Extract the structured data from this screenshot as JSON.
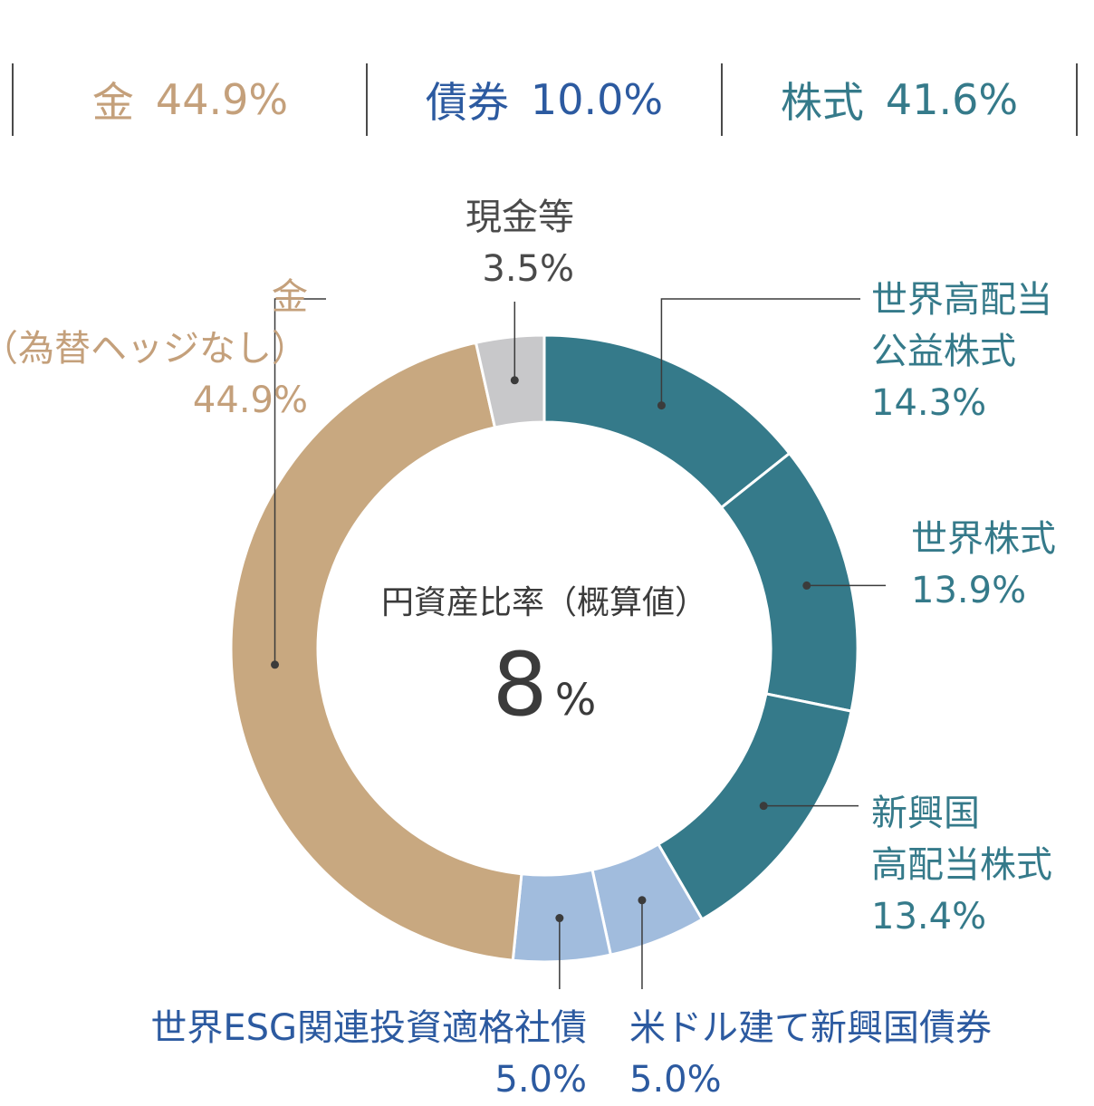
{
  "summary": [
    {
      "label": "金",
      "value": "44.9%",
      "color": "#c4a07b"
    },
    {
      "label": "債券",
      "value": "10.0%",
      "color": "#2c5aa0"
    },
    {
      "label": "株式",
      "value": "41.6%",
      "color": "#357a8a"
    }
  ],
  "center": {
    "title": "円資産比率（概算値）",
    "value": "8",
    "unit": "%"
  },
  "chart_data": {
    "type": "pie",
    "style": "donut",
    "title": "",
    "slices": [
      {
        "name": "世界高配当公益株式",
        "name_lines": [
          "世界高配当",
          "公益株式"
        ],
        "value": 14.3,
        "label": "14.3%",
        "color": "#357a8a",
        "text_color": "#357a8a"
      },
      {
        "name": "世界株式",
        "name_lines": [
          "世界株式"
        ],
        "value": 13.9,
        "label": "13.9%",
        "color": "#357a8a",
        "text_color": "#357a8a"
      },
      {
        "name": "新興国高配当株式",
        "name_lines": [
          "新興国",
          "高配当株式"
        ],
        "value": 13.4,
        "label": "13.4%",
        "color": "#357a8a",
        "text_color": "#357a8a"
      },
      {
        "name": "米ドル建て新興国債券",
        "name_lines": [
          "米ドル建て新興国債券"
        ],
        "value": 5.0,
        "label": "5.0%",
        "color": "#a1bcdd",
        "text_color": "#2c5aa0"
      },
      {
        "name": "世界ESG関連投資適格社債",
        "name_lines": [
          "世界ESG関連投資適格社債"
        ],
        "value": 5.0,
        "label": "5.0%",
        "color": "#a1bcdd",
        "text_color": "#2c5aa0"
      },
      {
        "name": "金（為替ヘッジなし）",
        "name_lines": [
          "金",
          "（為替ヘッジなし）"
        ],
        "value": 44.9,
        "label": "44.9%",
        "color": "#c8a880",
        "text_color": "#c4a07b"
      },
      {
        "name": "現金等",
        "name_lines": [
          "現金等"
        ],
        "value": 3.5,
        "label": "3.5%",
        "color": "#c8c8ca",
        "text_color": "#4a4a4a"
      }
    ]
  }
}
